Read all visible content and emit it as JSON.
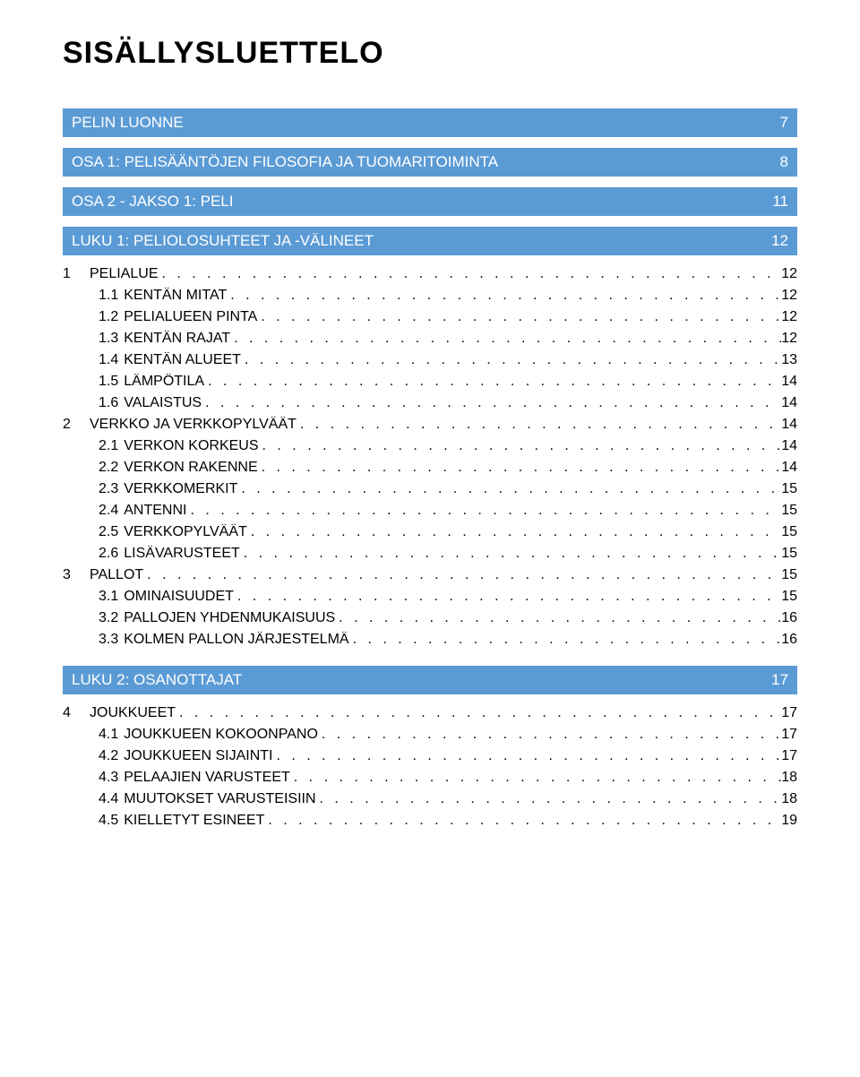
{
  "title": "SISÄLLYSLUETTELO",
  "sections": [
    {
      "type": "blue",
      "label": "PELIN LUONNE",
      "page": "7"
    },
    {
      "type": "blue",
      "label": "OSA 1: PELISÄÄNTÖJEN FILOSOFIA JA TUOMARITOIMINTA",
      "page": "8"
    },
    {
      "type": "blue",
      "label": "OSA 2 - JAKSO 1: PELI",
      "page": "11"
    },
    {
      "type": "blue",
      "label": "LUKU 1: PELIOLOSUHTEET JA -VÄLINEET",
      "page": "12"
    }
  ],
  "toc1": [
    {
      "level": 1,
      "num": "1",
      "label": "PELIALUE",
      "page": "12"
    },
    {
      "level": 2,
      "num": "1.1",
      "label": "KENTÄN MITAT",
      "page": "12"
    },
    {
      "level": 2,
      "num": "1.2",
      "label": "PELIALUEEN PINTA",
      "page": "12"
    },
    {
      "level": 2,
      "num": "1.3",
      "label": "KENTÄN RAJAT",
      "page": "12"
    },
    {
      "level": 2,
      "num": "1.4",
      "label": "KENTÄN ALUEET",
      "page": "13"
    },
    {
      "level": 2,
      "num": "1.5",
      "label": "LÄMPÖTILA",
      "page": "14"
    },
    {
      "level": 2,
      "num": "1.6",
      "label": "VALAISTUS",
      "page": "14"
    },
    {
      "level": 1,
      "num": "2",
      "label": "VERKKO JA VERKKOPYLVÄÄT",
      "page": "14"
    },
    {
      "level": 2,
      "num": "2.1",
      "label": "VERKON KORKEUS",
      "page": "14"
    },
    {
      "level": 2,
      "num": "2.2",
      "label": "VERKON RAKENNE",
      "page": "14"
    },
    {
      "level": 2,
      "num": "2.3",
      "label": "VERKKOMERKIT",
      "page": "15"
    },
    {
      "level": 2,
      "num": "2.4",
      "label": "ANTENNI",
      "page": "15"
    },
    {
      "level": 2,
      "num": "2.5",
      "label": "VERKKOPYLVÄÄT",
      "page": "15"
    },
    {
      "level": 2,
      "num": "2.6",
      "label": "LISÄVARUSTEET",
      "page": "15"
    },
    {
      "level": 1,
      "num": "3",
      "label": "PALLOT",
      "page": "15"
    },
    {
      "level": 2,
      "num": "3.1",
      "label": "OMINAISUUDET",
      "page": "15"
    },
    {
      "level": 2,
      "num": "3.2",
      "label": "PALLOJEN YHDENMUKAISUUS",
      "page": "16"
    },
    {
      "level": 2,
      "num": "3.3",
      "label": "KOLMEN PALLON JÄRJESTELMÄ",
      "page": "16"
    }
  ],
  "section_luku2": {
    "label": "LUKU 2: OSANOTTAJAT",
    "page": "17"
  },
  "toc2": [
    {
      "level": 1,
      "num": "4",
      "label": "JOUKKUEET",
      "page": "17"
    },
    {
      "level": 2,
      "num": "4.1",
      "label": "JOUKKUEEN KOKOONPANO",
      "page": "17"
    },
    {
      "level": 2,
      "num": "4.2",
      "label": "JOUKKUEEN SIJAINTI",
      "page": "17"
    },
    {
      "level": 2,
      "num": "4.3",
      "label": "PELAAJIEN VARUSTEET",
      "page": "18"
    },
    {
      "level": 2,
      "num": "4.4",
      "label": "MUUTOKSET VARUSTEISIIN",
      "page": "18"
    },
    {
      "level": 2,
      "num": "4.5",
      "label": "KIELLETYT ESINEET",
      "page": "19"
    }
  ],
  "colors": {
    "heading_bg": "#5b9bd5",
    "heading_fg": "#ffffff",
    "text": "#000000",
    "background": "#ffffff"
  },
  "typography": {
    "title_fontsize_pt": 26,
    "body_fontsize_pt": 12,
    "heading_fontsize_pt": 13
  }
}
